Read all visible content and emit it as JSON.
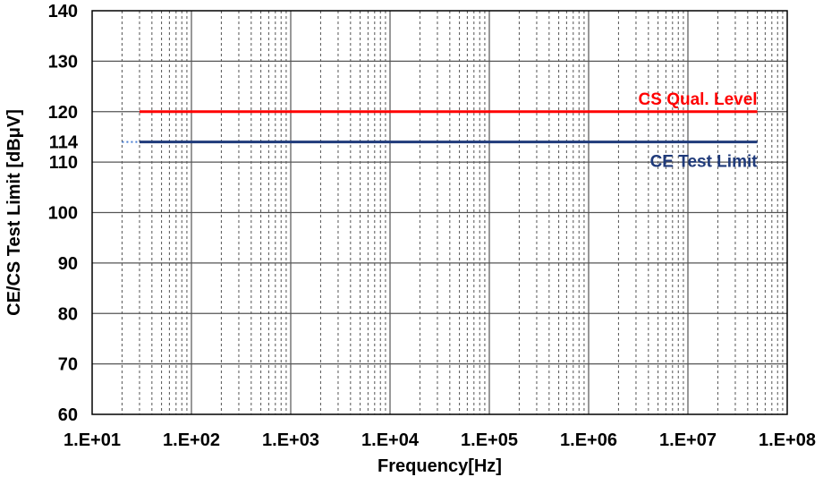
{
  "chart_data": {
    "type": "line",
    "xlabel": "Frequency[Hz]",
    "ylabel": "CE/CS Test Limit [dBμV]",
    "x_scale": "log",
    "xlim": [
      10,
      100000000
    ],
    "ylim": [
      60,
      140
    ],
    "x_ticks": [
      "1.E+01",
      "1.E+02",
      "1.E+03",
      "1.E+04",
      "1.E+05",
      "1.E+06",
      "1.E+07",
      "1.E+08"
    ],
    "y_ticks": [
      "60",
      "70",
      "80",
      "90",
      "100",
      "110",
      "114",
      "120",
      "130",
      "140"
    ],
    "grid": true,
    "series": [
      {
        "name": "CS Qual. Level",
        "color": "#ff0000",
        "x": [
          30,
          50000000
        ],
        "y": [
          120,
          120
        ]
      },
      {
        "name": "CE Test Limit",
        "color": "#1f3a7a",
        "x": [
          30,
          50000000
        ],
        "y": [
          114,
          114
        ],
        "dotted_extension": {
          "color": "#4a7fd4",
          "x": [
            20,
            30
          ],
          "y": [
            114,
            114
          ]
        }
      }
    ]
  }
}
